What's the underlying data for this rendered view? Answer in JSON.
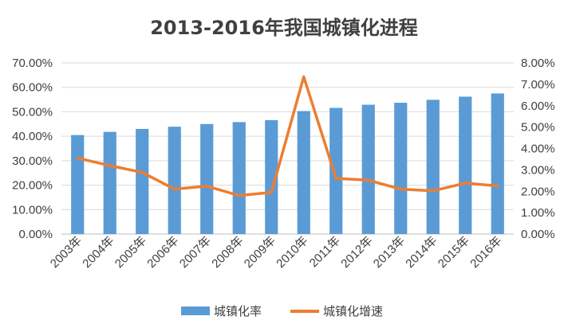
{
  "chart_data": {
    "type": "bar+line",
    "title": "2013-2016年我国城镇化进程",
    "categories": [
      "2003年",
      "2004年",
      "2005年",
      "2006年",
      "2007年",
      "2008年",
      "2009年",
      "2010年",
      "2011年",
      "2012年",
      "2013年",
      "2014年",
      "2015年",
      "2016年"
    ],
    "series": [
      {
        "name": "城镇化率",
        "type": "bar",
        "axis": "left",
        "color": "#5B9BD5",
        "values": [
          40.5,
          41.8,
          43.0,
          43.9,
          45.0,
          45.8,
          46.6,
          50.3,
          51.6,
          52.9,
          53.7,
          54.9,
          56.2,
          57.5
        ]
      },
      {
        "name": "城镇化增速",
        "type": "line",
        "axis": "right",
        "color": "#ED7D31",
        "values": [
          3.55,
          3.2,
          2.88,
          2.1,
          2.24,
          1.8,
          1.95,
          7.35,
          2.6,
          2.52,
          2.1,
          2.02,
          2.38,
          2.25
        ]
      }
    ],
    "y_left": {
      "min": 0,
      "max": 70,
      "step": 10,
      "tick_labels": [
        "0.00%",
        "10.00%",
        "20.00%",
        "30.00%",
        "40.00%",
        "50.00%",
        "60.00%",
        "70.00%"
      ]
    },
    "y_right": {
      "min": 0,
      "max": 8,
      "step": 1,
      "tick_labels": [
        "0.00%",
        "1.00%",
        "2.00%",
        "3.00%",
        "4.00%",
        "5.00%",
        "6.00%",
        "7.00%",
        "8.00%"
      ]
    },
    "grid": true,
    "legend_position": "bottom"
  }
}
